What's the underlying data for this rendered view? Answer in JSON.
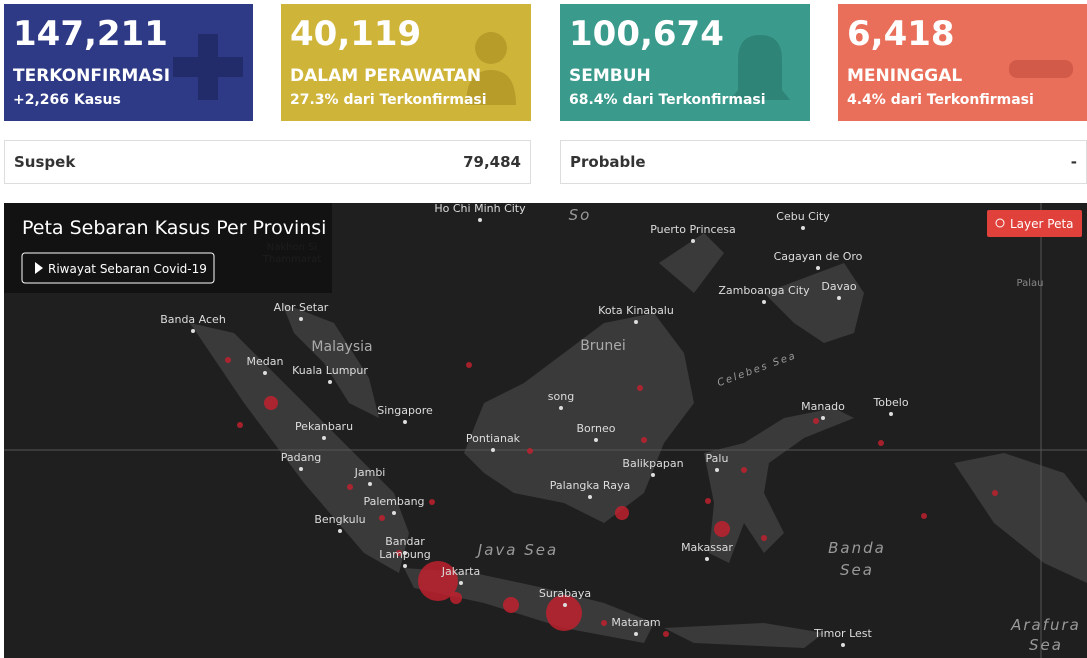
{
  "cards": [
    {
      "value": "147,211",
      "label": "TERKONFIRMASI",
      "sub": "+2,266 Kasus"
    },
    {
      "value": "40,119",
      "label": "DALAM PERAWATAN",
      "sub": "27.3% dari Terkonfirmasi"
    },
    {
      "value": "100,674",
      "label": "SEMBUH",
      "sub": "68.4% dari Terkonfirmasi"
    },
    {
      "value": "6,418",
      "label": "MENINGGAL",
      "sub": "4.4% dari Terkonfirmasi"
    }
  ],
  "rows": [
    {
      "label": "Suspek",
      "value": "79,484"
    },
    {
      "label": "Probable",
      "value": "-"
    }
  ],
  "map": {
    "title": "Peta Sebaran Kasus Per Provinsi",
    "history_button": "Riwayat Sebaran Covid-19",
    "layer_button": "Layer Peta",
    "labels": [
      "Ho Chi Minh City",
      "Nakhon Si",
      "Thammarat",
      "Puerto Princesa",
      "Cebu City",
      "Cagayan de Oro",
      "Zamboanga City",
      "Davao",
      "Palau",
      "Banda Aceh",
      "Alor Setar",
      "Kota Kinabalu",
      "Malaysia",
      "Brunei",
      "Medan",
      "Kuala Lumpur",
      "Celebes Sea",
      "Singapore",
      "song",
      "Manado",
      "Tobelo",
      "Pekanbaru",
      "Pontianak",
      "Borneo",
      "Padang",
      "Jambi",
      "Balikpapan",
      "Palu",
      "Palangka Raya",
      "Palembang",
      "Bengkulu",
      "Bandar",
      "Lampung",
      "Java Sea",
      "Makassar",
      "Banda",
      "Sea",
      "Jakarta",
      "Surabaya",
      "Mataram",
      "Timor Lest",
      "Arafura",
      "Sea",
      "So"
    ]
  }
}
